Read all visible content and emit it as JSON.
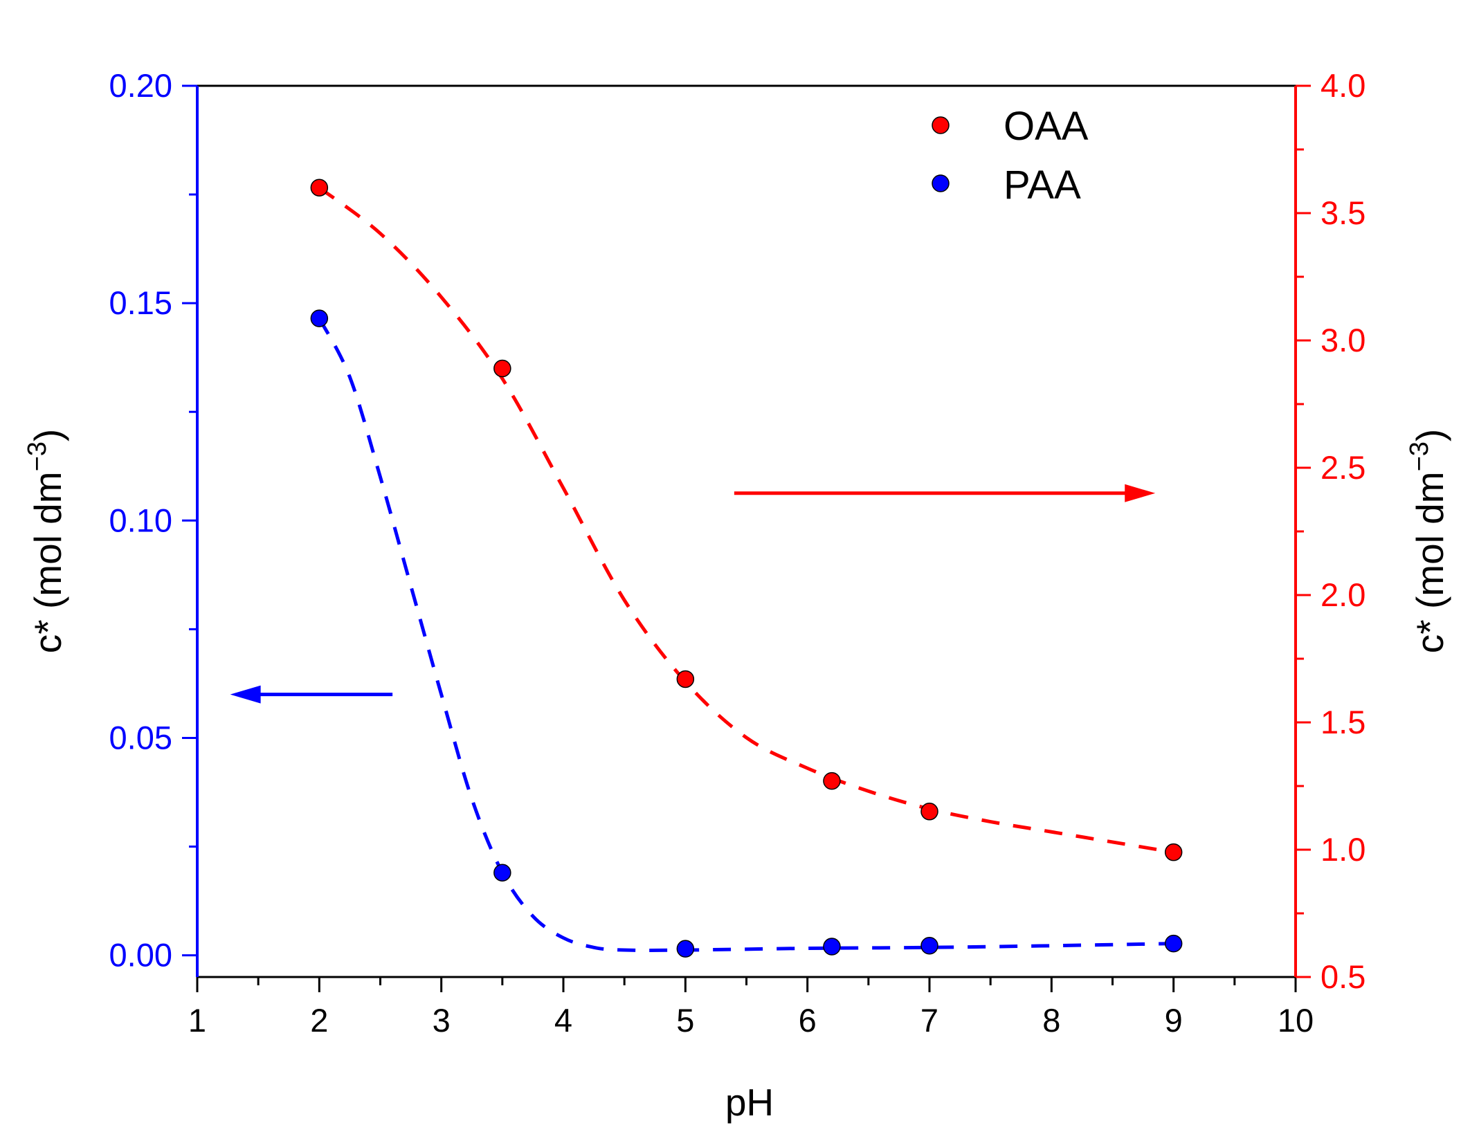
{
  "chart_data": {
    "type": "scatter",
    "title": "",
    "xlabel": "pH",
    "ylabel_left": "c* (mol dm",
    "ylabel_left_sup": "−3",
    "ylabel_left_close": ")",
    "ylabel_right": "c* (mol dm",
    "ylabel_right_sup": "−3",
    "ylabel_right_close": ")",
    "xlim": [
      1,
      10
    ],
    "xticks": [
      1,
      2,
      3,
      4,
      5,
      6,
      7,
      8,
      9,
      10
    ],
    "xtick_labels": [
      "1",
      "2",
      "3",
      "4",
      "5",
      "6",
      "7",
      "8",
      "9",
      "10"
    ],
    "ylim_left": [
      -0.005,
      0.2
    ],
    "yticks_left": [
      0.0,
      0.05,
      0.1,
      0.15,
      0.2
    ],
    "ytick_labels_left": [
      "0.00",
      "0.05",
      "0.10",
      "0.15",
      "0.20"
    ],
    "ylim_right": [
      0.5,
      4.0
    ],
    "yticks_right": [
      0.5,
      1.0,
      1.5,
      2.0,
      2.5,
      3.0,
      3.5,
      4.0
    ],
    "ytick_labels_right": [
      "0.5",
      "1.0",
      "1.5",
      "2.0",
      "2.5",
      "3.0",
      "3.5",
      "4.0"
    ],
    "grid": false,
    "legend_position": "top-right",
    "colors": {
      "left_axis": "#0000ff",
      "right_axis": "#ff0000",
      "text": "#000000"
    },
    "series": [
      {
        "name": "OAA",
        "axis": "right",
        "color": "#ff0000",
        "x": [
          2,
          3.5,
          5,
          6.2,
          7,
          9
        ],
        "y": [
          3.6,
          2.89,
          1.67,
          1.27,
          1.15,
          0.99
        ],
        "fit_x": [
          2,
          2.5,
          3,
          3.5,
          4,
          4.5,
          5,
          5.5,
          6,
          6.5,
          7,
          7.5,
          8,
          8.5,
          9
        ],
        "fit_y": [
          3.6,
          3.42,
          3.17,
          2.85,
          2.42,
          1.98,
          1.66,
          1.44,
          1.32,
          1.23,
          1.16,
          1.11,
          1.07,
          1.03,
          0.99
        ]
      },
      {
        "name": "PAA",
        "axis": "left",
        "color": "#0000ff",
        "x": [
          2,
          3.5,
          5,
          6.2,
          7,
          9
        ],
        "y": [
          0.1465,
          0.019,
          0.0015,
          0.002,
          0.0022,
          0.0027
        ],
        "fit_x": [
          2,
          2.25,
          2.5,
          2.75,
          3,
          3.25,
          3.5,
          3.75,
          4,
          4.25,
          4.5,
          5,
          6,
          7,
          8,
          9
        ],
        "fit_y": [
          0.1465,
          0.133,
          0.11,
          0.085,
          0.06,
          0.036,
          0.019,
          0.009,
          0.004,
          0.0018,
          0.0012,
          0.0012,
          0.0016,
          0.0018,
          0.0022,
          0.0027
        ]
      }
    ],
    "annotations": [
      {
        "kind": "arrow",
        "direction": "right",
        "color": "#ff0000",
        "meaning": "OAA data refers to right axis",
        "from": [
          5.4,
          2.4
        ],
        "to": [
          8.85,
          2.4
        ],
        "axis": "right"
      },
      {
        "kind": "arrow",
        "direction": "left",
        "color": "#0000ff",
        "meaning": "PAA data refers to left axis",
        "from": [
          2.6,
          0.06
        ],
        "to": [
          1.27,
          0.06
        ],
        "axis": "left"
      }
    ]
  }
}
